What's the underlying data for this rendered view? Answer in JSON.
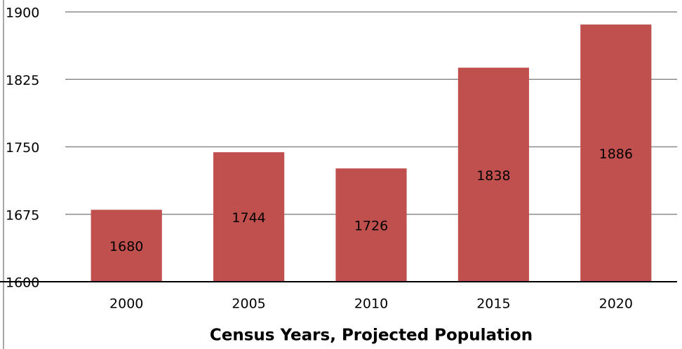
{
  "chart_data": {
    "type": "bar",
    "x_label": "Census Years, Projected Population",
    "categories": [
      "2000",
      "2005",
      "2010",
      "2015",
      "2020"
    ],
    "values": [
      1680,
      1744,
      1726,
      1838,
      1886
    ],
    "color": "#c0504d",
    "ylim": [
      1600,
      1900
    ],
    "yticks": [
      1600,
      1675,
      1750,
      1825,
      1900
    ],
    "grid": true
  }
}
